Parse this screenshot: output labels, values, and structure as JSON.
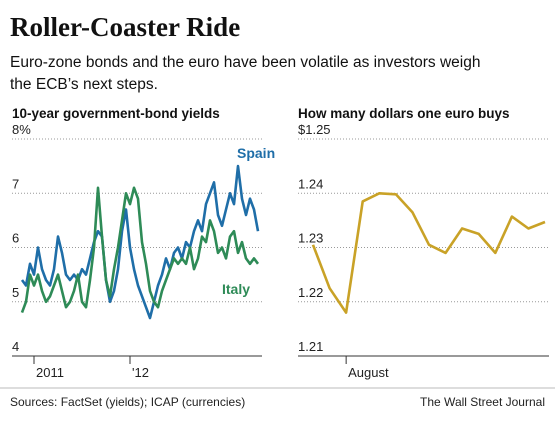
{
  "title": "Roller-Coaster Ride",
  "subtitle_lines": [
    "Euro-zone bonds and the euro have been volatile as investors weigh",
    "the ECB’s next steps."
  ],
  "source": "Sources: FactSet (yields); ICAP (currencies)",
  "credit": "The Wall Street Journal",
  "chart_data": [
    {
      "type": "line",
      "title": "10-year government-bond yields",
      "categories": [
        null,
        null,
        null,
        "2011",
        null,
        null,
        null,
        null,
        null,
        null,
        null,
        null,
        null,
        null,
        null,
        null,
        null,
        null,
        null,
        null,
        null,
        null,
        null,
        null,
        null,
        null,
        null,
        "'12",
        null,
        null,
        null,
        null,
        null,
        null,
        null,
        null,
        null,
        null,
        null,
        null,
        null,
        null,
        null,
        null,
        null,
        null,
        null,
        null,
        null,
        null,
        null,
        null,
        null,
        null,
        null,
        null,
        null,
        null,
        null,
        null
      ],
      "series": [
        {
          "name": "Spain",
          "color": "#1f6ea8",
          "values": [
            5.4,
            5.3,
            5.7,
            5.5,
            6.0,
            5.6,
            5.4,
            5.3,
            5.6,
            6.2,
            5.9,
            5.5,
            5.4,
            5.5,
            5.4,
            5.6,
            5.5,
            5.8,
            6.1,
            6.3,
            6.2,
            5.4,
            5.0,
            5.2,
            5.6,
            6.3,
            6.7,
            6.0,
            5.6,
            5.3,
            5.1,
            4.9,
            4.7,
            5.0,
            5.3,
            5.5,
            5.8,
            5.6,
            5.9,
            6.0,
            5.8,
            6.1,
            6.0,
            6.3,
            6.5,
            6.3,
            6.8,
            7.0,
            7.2,
            6.6,
            6.4,
            6.7,
            7.0,
            6.8,
            7.5,
            6.9,
            6.6,
            6.9,
            6.7,
            6.3
          ]
        },
        {
          "name": "Italy",
          "color": "#2e8b57",
          "values": [
            4.8,
            5.0,
            5.5,
            5.3,
            5.5,
            5.2,
            5.0,
            5.1,
            5.3,
            5.5,
            5.2,
            4.9,
            5.0,
            5.2,
            5.5,
            5.0,
            4.9,
            5.4,
            6.0,
            7.1,
            6.2,
            5.4,
            5.1,
            5.6,
            6.0,
            6.5,
            7.0,
            6.8,
            7.1,
            6.9,
            6.1,
            5.7,
            5.2,
            5.0,
            4.9,
            5.2,
            5.4,
            5.6,
            5.8,
            5.7,
            5.8,
            5.7,
            6.0,
            5.6,
            5.8,
            6.2,
            6.1,
            6.5,
            6.3,
            5.9,
            6.0,
            5.8,
            6.2,
            6.3,
            5.9,
            6.1,
            5.8,
            5.7,
            5.8,
            5.7
          ]
        }
      ],
      "ylim": [
        4,
        8
      ],
      "yticks": [
        4,
        5,
        6,
        7,
        {
          "value": 8,
          "label": "8%"
        }
      ],
      "grid": true
    },
    {
      "type": "line",
      "title": "How many dollars one euro buys",
      "categories": [
        null,
        null,
        "August",
        null,
        null,
        null,
        null,
        null,
        null,
        null,
        null,
        null,
        null,
        null,
        null
      ],
      "series": [
        {
          "color": "#c9a227",
          "values": [
            1.2305,
            1.2225,
            1.218,
            1.2385,
            1.24,
            1.2398,
            1.2365,
            1.2305,
            1.229,
            1.2335,
            1.2325,
            1.229,
            1.2357,
            1.2335,
            1.2347
          ]
        }
      ],
      "ylim": [
        1.21,
        1.25
      ],
      "yticks": [
        1.21,
        1.22,
        1.23,
        1.24,
        {
          "value": 1.25,
          "label": "$1.25"
        }
      ],
      "grid": true
    }
  ]
}
